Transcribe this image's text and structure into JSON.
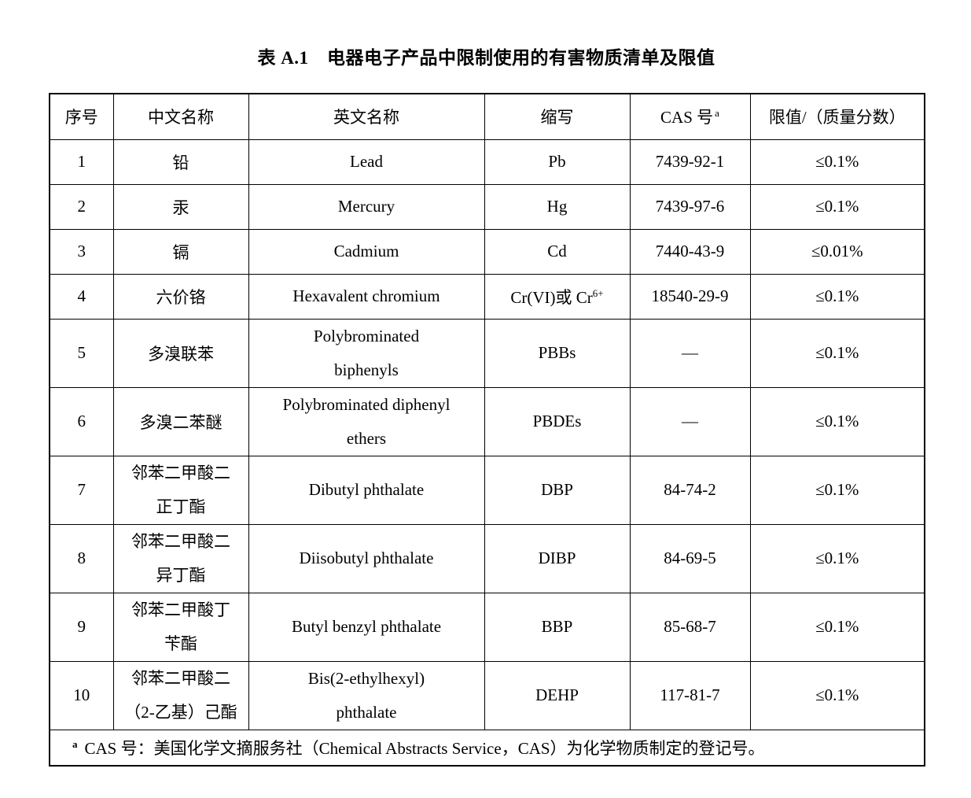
{
  "page": {
    "title": "表 A.1　电器电子产品中限制使用的有害物质清单及限值"
  },
  "table": {
    "columns": [
      {
        "label": "序号"
      },
      {
        "label": "中文名称"
      },
      {
        "label": "英文名称"
      },
      {
        "label": "缩写"
      },
      {
        "label": "CAS 号",
        "sup": "a"
      },
      {
        "label": "限值/（质量分数）"
      }
    ],
    "rows": [
      {
        "no": "1",
        "cn": [
          "铅"
        ],
        "en": [
          "Lead"
        ],
        "abbr": {
          "text": "Pb"
        },
        "cas": "7439-92-1",
        "limit": "≤0.1%"
      },
      {
        "no": "2",
        "cn": [
          "汞"
        ],
        "en": [
          "Mercury"
        ],
        "abbr": {
          "text": "Hg"
        },
        "cas": "7439-97-6",
        "limit": "≤0.1%"
      },
      {
        "no": "3",
        "cn": [
          "镉"
        ],
        "en": [
          "Cadmium"
        ],
        "abbr": {
          "text": "Cd"
        },
        "cas": "7440-43-9",
        "limit": "≤0.01%"
      },
      {
        "no": "4",
        "cn": [
          "六价铬"
        ],
        "en": [
          "Hexavalent chromium"
        ],
        "abbr": {
          "text": "Cr(VI)或 Cr",
          "sup": "6+"
        },
        "cas": "18540-29-9",
        "limit": "≤0.1%"
      },
      {
        "no": "5",
        "cn": [
          "多溴联苯"
        ],
        "en": [
          "Polybrominated",
          "biphenyls"
        ],
        "abbr": {
          "text": "PBBs"
        },
        "cas": "—",
        "limit": "≤0.1%"
      },
      {
        "no": "6",
        "cn": [
          "多溴二苯醚"
        ],
        "en": [
          "Polybrominated diphenyl",
          "ethers"
        ],
        "abbr": {
          "text": "PBDEs"
        },
        "cas": "—",
        "limit": "≤0.1%"
      },
      {
        "no": "7",
        "cn": [
          "邻苯二甲酸二",
          "正丁酯"
        ],
        "en": [
          "Dibutyl phthalate"
        ],
        "abbr": {
          "text": "DBP"
        },
        "cas": "84-74-2",
        "limit": "≤0.1%"
      },
      {
        "no": "8",
        "cn": [
          "邻苯二甲酸二",
          "异丁酯"
        ],
        "en": [
          "Diisobutyl phthalate"
        ],
        "abbr": {
          "text": "DIBP"
        },
        "cas": "84-69-5",
        "limit": "≤0.1%"
      },
      {
        "no": "9",
        "cn": [
          "邻苯二甲酸丁",
          "苄酯"
        ],
        "en": [
          "Butyl benzyl phthalate"
        ],
        "abbr": {
          "text": "BBP"
        },
        "cas": "85-68-7",
        "limit": "≤0.1%"
      },
      {
        "no": "10",
        "cn": [
          "邻苯二甲酸二",
          "（2-乙基）己酯"
        ],
        "en": [
          "Bis(2-ethylhexyl)",
          "phthalate"
        ],
        "abbr": {
          "text": "DEHP"
        },
        "cas": "117-81-7",
        "limit": "≤0.1%"
      }
    ],
    "footnote": {
      "marker": "a",
      "text": "CAS 号：美国化学文摘服务社（Chemical Abstracts Service，CAS）为化学物质制定的登记号。"
    }
  },
  "colors": {
    "text": "#000000",
    "border": "#000000",
    "background": "#ffffff"
  }
}
